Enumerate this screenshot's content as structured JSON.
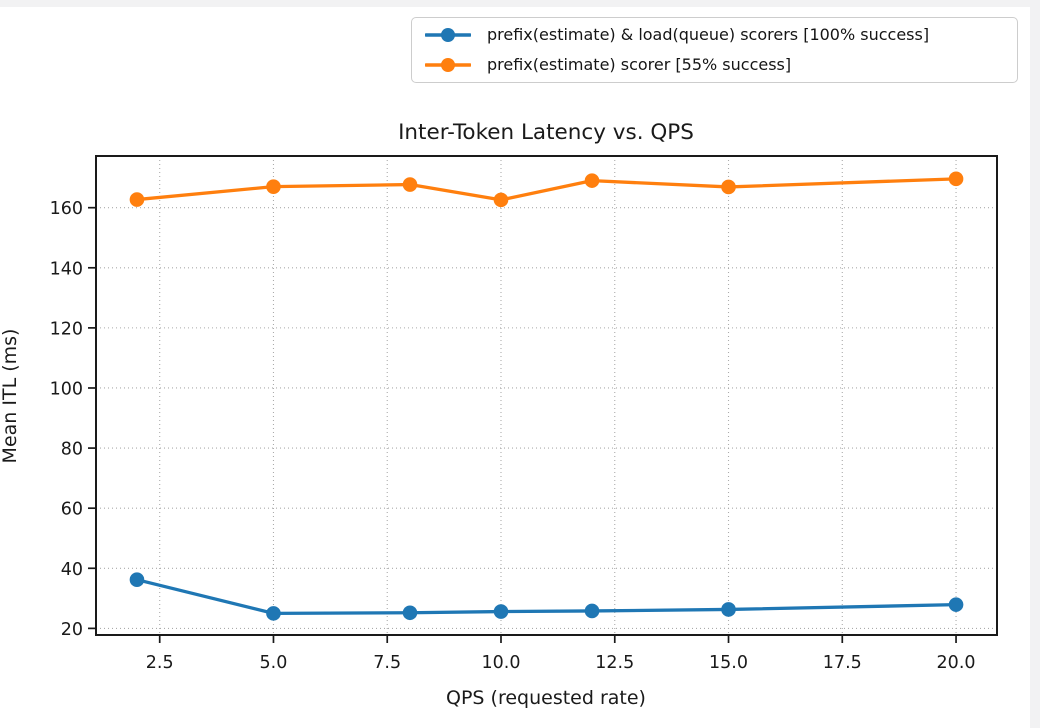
{
  "page": {
    "background": "#ffffff",
    "margin_band_color": "#f2f2f3"
  },
  "chart_data": {
    "type": "line",
    "title": "Inter-Token Latency vs. QPS",
    "xlabel": "QPS (requested rate)",
    "ylabel": "Mean ITL (ms)",
    "x": [
      2,
      5,
      8,
      10,
      12,
      15,
      20
    ],
    "series": [
      {
        "name": "prefix(estimate) & load(queue) scorers [100% success]",
        "color": "#1f77b4",
        "values": [
          36.2,
          25.0,
          25.2,
          25.6,
          25.8,
          26.3,
          27.9
        ]
      },
      {
        "name": "prefix(estimate) scorer [55% success]",
        "color": "#ff7f0e",
        "values": [
          162.7,
          167.0,
          167.7,
          162.6,
          169.0,
          166.9,
          169.6
        ]
      }
    ],
    "xticks": [
      2.5,
      5.0,
      7.5,
      10.0,
      12.5,
      15.0,
      17.5,
      20.0
    ],
    "yticks": [
      20,
      40,
      60,
      80,
      100,
      120,
      140,
      160
    ],
    "xlim": [
      1.1,
      20.9
    ],
    "ylim": [
      17.8,
      177.2
    ],
    "grid": true,
    "grid_style": "dotted",
    "legend_position": "top-right, outside axes",
    "axis_color": "#1a1a1a"
  }
}
